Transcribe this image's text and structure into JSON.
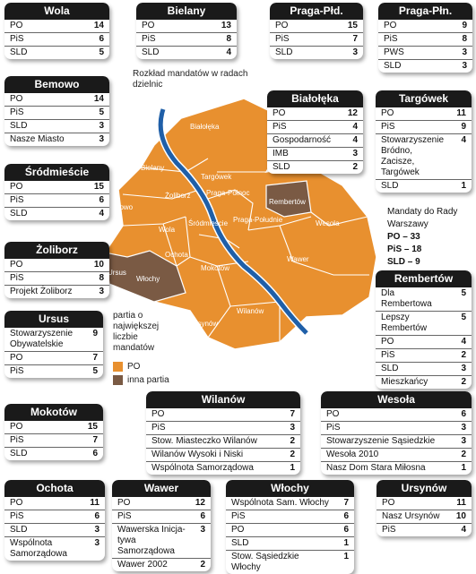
{
  "districts": [
    {
      "name": "Wola",
      "rows": [
        {
          "p": "PO",
          "n": "14"
        },
        {
          "p": "PiS",
          "n": "6"
        },
        {
          "p": "SLD",
          "n": "5"
        }
      ]
    },
    {
      "name": "Bielany",
      "rows": [
        {
          "p": "PO",
          "n": "13"
        },
        {
          "p": "PiS",
          "n": "8"
        },
        {
          "p": "SLD",
          "n": "4"
        }
      ]
    },
    {
      "name": "Praga-Płd.",
      "rows": [
        {
          "p": "PO",
          "n": "15"
        },
        {
          "p": "PiS",
          "n": "7"
        },
        {
          "p": "SLD",
          "n": "3"
        }
      ]
    },
    {
      "name": "Praga-Płn.",
      "rows": [
        {
          "p": "PO",
          "n": "9"
        },
        {
          "p": "PiS",
          "n": "8"
        },
        {
          "p": "PWS",
          "n": "3"
        },
        {
          "p": "SLD",
          "n": "3"
        }
      ]
    },
    {
      "name": "Bemowo",
      "rows": [
        {
          "p": "PO",
          "n": "14"
        },
        {
          "p": "PiS",
          "n": "5"
        },
        {
          "p": "SLD",
          "n": "3"
        },
        {
          "p": "Nasze Miasto",
          "n": "3"
        }
      ]
    },
    {
      "name": "Białołęka",
      "rows": [
        {
          "p": "PO",
          "n": "12"
        },
        {
          "p": "PiS",
          "n": "4"
        },
        {
          "p": "Gospodarność",
          "n": "4"
        },
        {
          "p": "IMB",
          "n": "3"
        },
        {
          "p": "SLD",
          "n": "2"
        }
      ]
    },
    {
      "name": "Targówek",
      "rows": [
        {
          "p": "PO",
          "n": "11"
        },
        {
          "p": "PiS",
          "n": "9"
        },
        {
          "p": "Stowarzyszenie Bródno, Zacisze, Targówek",
          "n": "4"
        },
        {
          "p": "SLD",
          "n": "1"
        }
      ]
    },
    {
      "name": "Śródmieście",
      "rows": [
        {
          "p": "PO",
          "n": "15"
        },
        {
          "p": "PiS",
          "n": "6"
        },
        {
          "p": "SLD",
          "n": "4"
        }
      ]
    },
    {
      "name": "Żoliborz",
      "rows": [
        {
          "p": "PO",
          "n": "10"
        },
        {
          "p": "PiS",
          "n": "8"
        },
        {
          "p": "Projekt Żoliborz",
          "n": "3"
        }
      ]
    },
    {
      "name": "Rembertów",
      "rows": [
        {
          "p": "Dla Rembertowa",
          "n": "5"
        },
        {
          "p": "Lepszy Rembertów",
          "n": "5"
        },
        {
          "p": "PO",
          "n": "4"
        },
        {
          "p": "PiS",
          "n": "2"
        },
        {
          "p": "SLD",
          "n": "3"
        },
        {
          "p": "Mieszkańcy",
          "n": "2"
        }
      ]
    },
    {
      "name": "Ursus",
      "rows": [
        {
          "p": "Stowarzyszenie Obywatelskie",
          "n": "9"
        },
        {
          "p": "PO",
          "n": "7"
        },
        {
          "p": "PiS",
          "n": "5"
        }
      ]
    },
    {
      "name": "Mokotów",
      "rows": [
        {
          "p": "PO",
          "n": "15"
        },
        {
          "p": "PiS",
          "n": "7"
        },
        {
          "p": "SLD",
          "n": "6"
        }
      ]
    },
    {
      "name": "Wilanów",
      "rows": [
        {
          "p": "PO",
          "n": "7"
        },
        {
          "p": "PiS",
          "n": "3"
        },
        {
          "p": "Stow. Miasteczko Wilanów",
          "n": "2"
        },
        {
          "p": "Wilanów Wysoki i Niski",
          "n": "2"
        },
        {
          "p": "Wspólnota Samorządowa",
          "n": "1"
        }
      ]
    },
    {
      "name": "Wesoła",
      "rows": [
        {
          "p": "PO",
          "n": "6"
        },
        {
          "p": "PiS",
          "n": "3"
        },
        {
          "p": "Stowarzyszenie Sąsiedzkie",
          "n": "3"
        },
        {
          "p": "Wesoła 2010",
          "n": "2"
        },
        {
          "p": "Nasz Dom Stara Miłosna",
          "n": "1"
        }
      ]
    },
    {
      "name": "Ochota",
      "rows": [
        {
          "p": "PO",
          "n": "11"
        },
        {
          "p": "PiS",
          "n": "6"
        },
        {
          "p": "SLD",
          "n": "3"
        },
        {
          "p": "Wspólnota Samorządowa",
          "n": "3"
        }
      ]
    },
    {
      "name": "Wawer",
      "rows": [
        {
          "p": "PO",
          "n": "12"
        },
        {
          "p": "PiS",
          "n": "6"
        },
        {
          "p": "Wawerska Inicja-tywa Samorządowa",
          "n": "3"
        },
        {
          "p": "Wawer 2002",
          "n": "2"
        }
      ]
    },
    {
      "name": "Włochy",
      "rows": [
        {
          "p": "Wspólnota Sam. Włochy",
          "n": "7"
        },
        {
          "p": "PiS",
          "n": "6"
        },
        {
          "p": "PO",
          "n": "6"
        },
        {
          "p": "SLD",
          "n": "1"
        },
        {
          "p": "Stow. Sąsiedzkie Włochy",
          "n": "1"
        }
      ]
    },
    {
      "name": "Ursynów",
      "rows": [
        {
          "p": "PO",
          "n": "11"
        },
        {
          "p": "Nasz Ursynów",
          "n": "10"
        },
        {
          "p": "PiS",
          "n": "4"
        }
      ]
    }
  ],
  "map": {
    "caption": "Rozkład mandatów w radach dzielnic",
    "labels": [
      "Białołęka",
      "Bielany",
      "Targówek",
      "Żoliborz",
      "Praga-Północ",
      "Rembertów",
      "Bemowo",
      "Śródmieście",
      "Praga-Południe",
      "Wesoła",
      "Wola",
      "Ochota",
      "Ursus",
      "Włochy",
      "Mokotów",
      "Wawer",
      "Wilanów",
      "Ursynów"
    ],
    "colors": {
      "po": "#e8902f",
      "other": "#7a5a44",
      "river": "#1f5fa8"
    }
  },
  "legend": {
    "title": "partia o największej liczbie mandatów",
    "items": [
      {
        "label": "PO",
        "color": "#e8902f"
      },
      {
        "label": "inna partia",
        "color": "#7a5a44"
      }
    ]
  },
  "summary": {
    "title": "Mandaty do Rady Warszawy",
    "items": [
      "PO – 33",
      "PiS – 18",
      "SLD – 9"
    ]
  }
}
